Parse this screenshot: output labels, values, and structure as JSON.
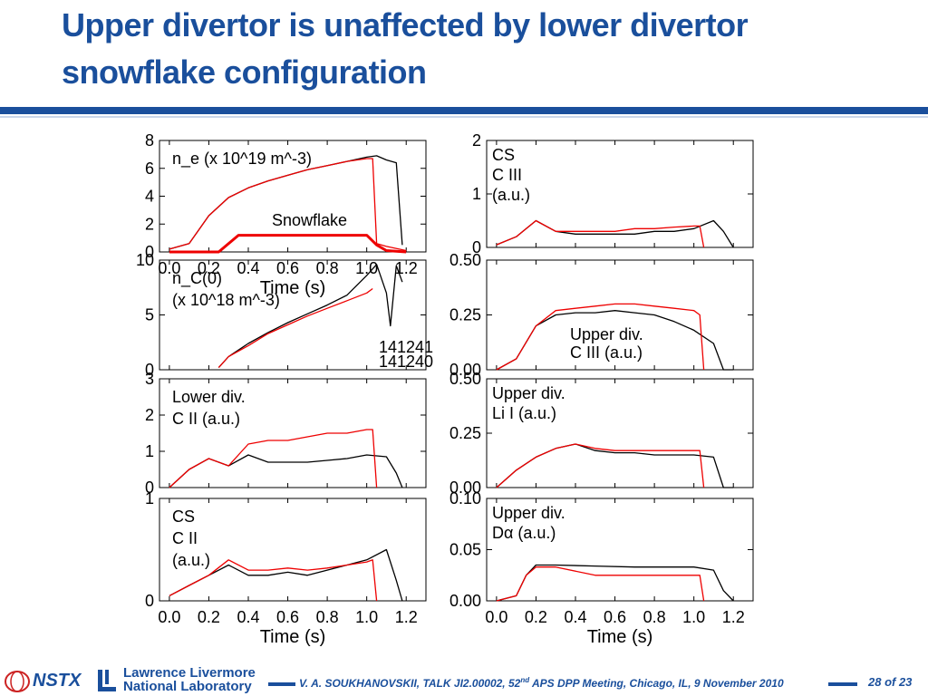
{
  "slide": {
    "title": "Upper divertor is unaffected by lower divertor snowflake configuration",
    "footer": {
      "nstx": "NSTX",
      "llnl_line1": "Lawrence Livermore",
      "llnl_line2": "National Laboratory",
      "citation_pre": "V. A. SOUKHANOVSKII, TALK JI2.00002, 52",
      "citation_sup": "nd",
      "citation_post": " APS DPP Meeting, Chicago, IL, 9 November 2010",
      "page": "28 of 23"
    },
    "colors": {
      "brand": "#1a4f9c",
      "series_black": "#000000",
      "series_red": "#ee0000"
    }
  },
  "chart_data": [
    {
      "type": "line",
      "column": "left",
      "panel": "ne",
      "xlabel": "Time (s)",
      "xlim": [
        -0.05,
        1.3
      ],
      "x_ticks": [
        "0.0",
        "0.2",
        "0.4",
        "0.6",
        "0.8",
        "1.0",
        "1.2"
      ],
      "ylim": [
        0,
        8
      ],
      "y_ticks": [
        "0",
        "2",
        "4",
        "6",
        "8"
      ],
      "labels": [
        {
          "text": "n_e (x 10^19 m^-3)",
          "color": "#000000",
          "pos": "top-left"
        },
        {
          "text": "Snowflake",
          "color": "#ee0000",
          "pos": "middle"
        }
      ],
      "series": [
        {
          "color": "black",
          "x": [
            0.0,
            0.1,
            0.2,
            0.3,
            0.4,
            0.5,
            0.6,
            0.7,
            0.8,
            0.9,
            1.0,
            1.05,
            1.1,
            1.15,
            1.18
          ],
          "y": [
            0.2,
            0.6,
            2.6,
            3.9,
            4.6,
            5.1,
            5.5,
            5.9,
            6.2,
            6.5,
            6.8,
            6.9,
            6.6,
            6.4,
            0.5
          ]
        },
        {
          "color": "red",
          "x": [
            0.0,
            0.1,
            0.2,
            0.3,
            0.4,
            0.5,
            0.6,
            0.7,
            0.8,
            0.9,
            1.0,
            1.03,
            1.05,
            1.1,
            1.2
          ],
          "y": [
            0.2,
            0.6,
            2.6,
            3.9,
            4.6,
            5.1,
            5.5,
            5.9,
            6.2,
            6.5,
            6.7,
            6.7,
            0.6,
            0.4,
            0.1
          ]
        },
        {
          "color": "red",
          "width": "thick",
          "x": [
            0.0,
            0.25,
            0.35,
            0.5,
            0.7,
            1.0,
            1.05,
            1.1,
            1.2
          ],
          "y": [
            0.0,
            0.0,
            1.2,
            1.2,
            1.2,
            1.2,
            0.5,
            0.1,
            0.0
          ]
        }
      ]
    },
    {
      "type": "line",
      "column": "left",
      "panel": "nC",
      "xlim": [
        -0.05,
        1.3
      ],
      "ylim": [
        0,
        10
      ],
      "y_ticks": [
        "0",
        "5",
        "10"
      ],
      "labels": [
        {
          "text": "n_C(0)",
          "color": "#000000",
          "pos": "top-left"
        },
        {
          "text": "(x 10^18 m^-3)",
          "color": "#000000",
          "pos": "top-left-2"
        },
        {
          "text": "141241",
          "color": "#000000",
          "pos": "right"
        },
        {
          "text": "141240",
          "color": "#ee0000",
          "pos": "right-2"
        }
      ],
      "series": [
        {
          "name": "141241",
          "color": "black",
          "x": [
            0.25,
            0.3,
            0.4,
            0.5,
            0.6,
            0.7,
            0.8,
            0.9,
            1.0,
            1.05,
            1.1,
            1.12,
            1.15,
            1.18
          ],
          "y": [
            0.2,
            1.2,
            2.4,
            3.4,
            4.3,
            5.1,
            5.9,
            6.8,
            8.6,
            9.6,
            7.0,
            4.0,
            9.5,
            8.0
          ]
        },
        {
          "name": "141240",
          "color": "red",
          "x": [
            0.25,
            0.3,
            0.4,
            0.5,
            0.6,
            0.7,
            0.8,
            0.9,
            1.0,
            1.03
          ],
          "y": [
            0.2,
            1.2,
            2.2,
            3.3,
            4.1,
            4.9,
            5.6,
            6.3,
            7.0,
            7.4
          ]
        }
      ]
    },
    {
      "type": "line",
      "column": "left",
      "panel": "lower-CII",
      "xlim": [
        -0.05,
        1.3
      ],
      "ylim": [
        0,
        3
      ],
      "y_ticks": [
        "0",
        "1",
        "2",
        "3"
      ],
      "labels": [
        {
          "text": "Lower div.",
          "color": "#000000",
          "pos": "top-left"
        },
        {
          "text": "C II (a.u.)",
          "color": "#000000",
          "pos": "top-left-2"
        }
      ],
      "series": [
        {
          "color": "black",
          "x": [
            0.0,
            0.1,
            0.2,
            0.3,
            0.4,
            0.5,
            0.6,
            0.7,
            0.8,
            0.9,
            1.0,
            1.1,
            1.15,
            1.18
          ],
          "y": [
            0.0,
            0.5,
            0.8,
            0.6,
            0.9,
            0.7,
            0.7,
            0.7,
            0.75,
            0.8,
            0.9,
            0.85,
            0.4,
            0.0
          ]
        },
        {
          "color": "red",
          "x": [
            0.0,
            0.1,
            0.2,
            0.3,
            0.4,
            0.5,
            0.6,
            0.7,
            0.8,
            0.9,
            1.0,
            1.03,
            1.05
          ],
          "y": [
            0.0,
            0.5,
            0.8,
            0.6,
            1.2,
            1.3,
            1.3,
            1.4,
            1.5,
            1.5,
            1.6,
            1.6,
            0.0
          ]
        }
      ]
    },
    {
      "type": "line",
      "column": "left",
      "panel": "CS-CII",
      "xlabel": "Time (s)",
      "xlim": [
        -0.05,
        1.3
      ],
      "ylim": [
        0,
        1
      ],
      "y_ticks": [
        "0",
        "1"
      ],
      "labels": [
        {
          "text": "CS",
          "color": "#000000",
          "pos": "top-left"
        },
        {
          "text": "C II",
          "color": "#000000",
          "pos": "top-left-2"
        },
        {
          "text": "(a.u.)",
          "color": "#000000",
          "pos": "top-left-3"
        }
      ],
      "series": [
        {
          "color": "black",
          "x": [
            0.0,
            0.1,
            0.2,
            0.3,
            0.4,
            0.5,
            0.6,
            0.7,
            0.8,
            0.9,
            1.0,
            1.1,
            1.15,
            1.18
          ],
          "y": [
            0.05,
            0.15,
            0.25,
            0.35,
            0.25,
            0.25,
            0.28,
            0.25,
            0.3,
            0.35,
            0.4,
            0.5,
            0.2,
            0.0
          ]
        },
        {
          "color": "red",
          "x": [
            0.0,
            0.1,
            0.2,
            0.3,
            0.4,
            0.5,
            0.6,
            0.7,
            0.8,
            0.9,
            1.0,
            1.03,
            1.05
          ],
          "y": [
            0.05,
            0.15,
            0.25,
            0.4,
            0.3,
            0.3,
            0.32,
            0.3,
            0.32,
            0.35,
            0.38,
            0.4,
            0.0
          ]
        }
      ]
    },
    {
      "type": "line",
      "column": "right",
      "panel": "CS-CIII",
      "xlim": [
        -0.05,
        1.3
      ],
      "ylim": [
        0,
        2
      ],
      "y_ticks": [
        "0",
        "1",
        "2"
      ],
      "labels": [
        {
          "text": "CS",
          "color": "#000000",
          "pos": "top-left"
        },
        {
          "text": "C III",
          "color": "#000000",
          "pos": "top-left-2"
        },
        {
          "text": "(a.u.)",
          "color": "#000000",
          "pos": "top-left-3"
        }
      ],
      "series": [
        {
          "color": "black",
          "x": [
            0.0,
            0.1,
            0.2,
            0.3,
            0.4,
            0.5,
            0.6,
            0.7,
            0.8,
            0.9,
            1.0,
            1.1,
            1.15,
            1.2
          ],
          "y": [
            0.05,
            0.2,
            0.5,
            0.3,
            0.25,
            0.25,
            0.25,
            0.25,
            0.3,
            0.3,
            0.35,
            0.5,
            0.3,
            0.0
          ]
        },
        {
          "color": "red",
          "x": [
            0.0,
            0.1,
            0.2,
            0.3,
            0.4,
            0.5,
            0.6,
            0.7,
            0.8,
            0.9,
            1.0,
            1.03,
            1.05
          ],
          "y": [
            0.05,
            0.2,
            0.5,
            0.3,
            0.3,
            0.3,
            0.3,
            0.35,
            0.35,
            0.38,
            0.4,
            0.4,
            0.0
          ]
        }
      ]
    },
    {
      "type": "line",
      "column": "right",
      "panel": "upper-CIII",
      "xlim": [
        -0.05,
        1.3
      ],
      "ylim": [
        0,
        0.5
      ],
      "y_ticks": [
        "0.00",
        "0.25",
        "0.50"
      ],
      "labels": [
        {
          "text": "Upper div.",
          "color": "#000000",
          "pos": "right"
        },
        {
          "text": "C III (a.u.)",
          "color": "#000000",
          "pos": "right-2"
        }
      ],
      "series": [
        {
          "color": "black",
          "x": [
            0.0,
            0.1,
            0.2,
            0.3,
            0.4,
            0.5,
            0.6,
            0.7,
            0.8,
            0.9,
            1.0,
            1.1,
            1.15,
            1.2
          ],
          "y": [
            0.0,
            0.05,
            0.2,
            0.25,
            0.26,
            0.26,
            0.27,
            0.26,
            0.25,
            0.22,
            0.18,
            0.12,
            0.0,
            0.0
          ]
        },
        {
          "color": "red",
          "x": [
            0.0,
            0.1,
            0.2,
            0.3,
            0.4,
            0.5,
            0.6,
            0.7,
            0.8,
            0.9,
            1.0,
            1.03,
            1.05
          ],
          "y": [
            0.0,
            0.05,
            0.2,
            0.27,
            0.28,
            0.29,
            0.3,
            0.3,
            0.29,
            0.28,
            0.27,
            0.25,
            0.0
          ]
        }
      ]
    },
    {
      "type": "line",
      "column": "right",
      "panel": "upper-LiI",
      "xlim": [
        -0.05,
        1.3
      ],
      "ylim": [
        0,
        0.5
      ],
      "y_ticks": [
        "0.00",
        "0.25",
        "0.50"
      ],
      "labels": [
        {
          "text": "Upper div.",
          "color": "#000000",
          "pos": "top-left"
        },
        {
          "text": "Li I (a.u.)",
          "color": "#000000",
          "pos": "top-left-2"
        }
      ],
      "series": [
        {
          "color": "black",
          "x": [
            0.0,
            0.1,
            0.2,
            0.3,
            0.4,
            0.5,
            0.6,
            0.7,
            0.8,
            0.9,
            1.0,
            1.1,
            1.15,
            1.2
          ],
          "y": [
            0.0,
            0.08,
            0.14,
            0.18,
            0.2,
            0.17,
            0.16,
            0.16,
            0.15,
            0.15,
            0.15,
            0.14,
            0.0,
            0.0
          ]
        },
        {
          "color": "red",
          "x": [
            0.0,
            0.1,
            0.2,
            0.3,
            0.4,
            0.5,
            0.6,
            0.7,
            0.8,
            0.9,
            1.0,
            1.03,
            1.05
          ],
          "y": [
            0.0,
            0.08,
            0.14,
            0.18,
            0.2,
            0.18,
            0.17,
            0.17,
            0.17,
            0.17,
            0.17,
            0.17,
            0.0
          ]
        }
      ]
    },
    {
      "type": "line",
      "column": "right",
      "panel": "upper-Dalpha",
      "xlabel": "Time (s)",
      "xlim": [
        -0.05,
        1.3
      ],
      "x_ticks": [
        "0.0",
        "0.2",
        "0.4",
        "0.6",
        "0.8",
        "1.0",
        "1.2"
      ],
      "ylim": [
        0,
        0.1
      ],
      "y_ticks": [
        "0.00",
        "0.05",
        "0.10"
      ],
      "labels": [
        {
          "text": "Upper div.",
          "color": "#000000",
          "pos": "top-left"
        },
        {
          "text": "Dα (a.u.)",
          "color": "#000000",
          "pos": "top-left-2"
        }
      ],
      "series": [
        {
          "color": "black",
          "x": [
            0.0,
            0.1,
            0.15,
            0.2,
            0.3,
            0.5,
            0.7,
            0.9,
            1.0,
            1.1,
            1.15,
            1.2
          ],
          "y": [
            0.0,
            0.005,
            0.025,
            0.035,
            0.035,
            0.034,
            0.033,
            0.033,
            0.033,
            0.03,
            0.01,
            0.0
          ]
        },
        {
          "color": "red",
          "x": [
            0.0,
            0.1,
            0.15,
            0.2,
            0.3,
            0.5,
            0.7,
            0.9,
            1.0,
            1.03,
            1.05
          ],
          "y": [
            0.0,
            0.005,
            0.025,
            0.033,
            0.033,
            0.025,
            0.025,
            0.025,
            0.025,
            0.025,
            0.0
          ]
        }
      ]
    }
  ]
}
